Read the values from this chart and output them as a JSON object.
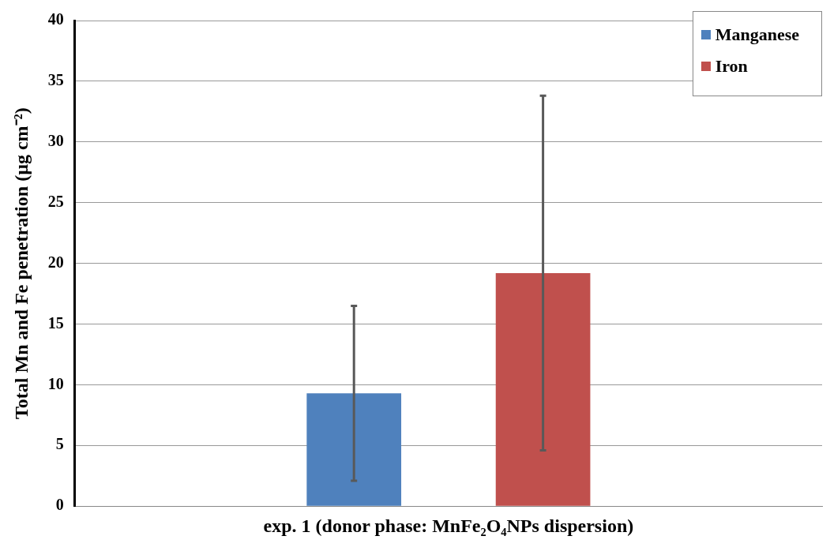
{
  "chart_data": {
    "type": "bar",
    "ylabel": "Total Mn and Fe penetration (µg cm⁻²)",
    "categories": [
      "exp. 1 (donor phase: MnFe₂O₄NPs dispersion)"
    ],
    "series": [
      {
        "name": "Manganese",
        "color": "#4f81bd",
        "values": [
          9.3
        ],
        "errors": [
          7.2
        ]
      },
      {
        "name": "Iron",
        "color": "#c0504d",
        "values": [
          19.2
        ],
        "errors": [
          14.6
        ]
      }
    ],
    "ylim": [
      0,
      40
    ],
    "yticks": [
      0,
      5,
      10,
      15,
      20,
      25,
      30,
      35,
      40
    ],
    "grid": "y",
    "legend": "top right"
  }
}
